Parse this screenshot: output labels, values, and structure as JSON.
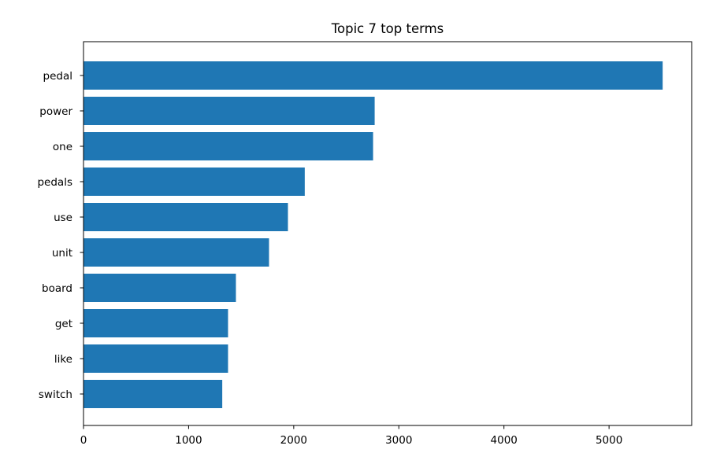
{
  "chart_data": {
    "type": "bar",
    "orientation": "horizontal",
    "title": "Topic 7 top terms",
    "xlabel": "",
    "ylabel": "",
    "categories": [
      "pedal",
      "power",
      "one",
      "pedals",
      "use",
      "unit",
      "board",
      "get",
      "like",
      "switch"
    ],
    "values": [
      5510,
      2770,
      2755,
      2105,
      1945,
      1765,
      1450,
      1375,
      1375,
      1320
    ],
    "xlim": [
      0,
      5786
    ],
    "xticks": [
      0,
      1000,
      2000,
      3000,
      4000,
      5000
    ],
    "grid": false,
    "bar_color": "#1f77b4"
  }
}
